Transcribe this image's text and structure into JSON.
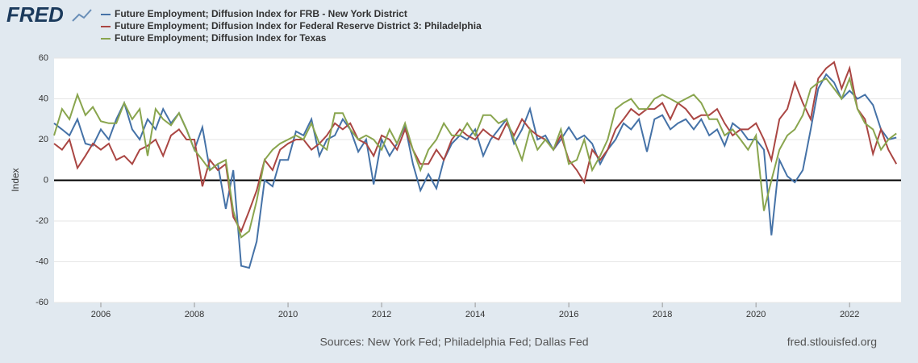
{
  "logo": "FRED",
  "chart_data": {
    "type": "line",
    "y_label": "Index",
    "source": "Sources: New York Fed; Philadelphia Fed; Dallas Fed",
    "site": "fred.stlouisfed.org",
    "xlim": [
      2005,
      2023.1
    ],
    "xticks": [
      2006,
      2008,
      2010,
      2012,
      2014,
      2016,
      2018,
      2020,
      2022
    ],
    "ylim": [
      -60,
      60
    ],
    "yticks": [
      -60,
      -40,
      -20,
      0,
      20,
      40,
      60
    ],
    "grid": true,
    "legend": "top-left",
    "x": [
      2005,
      2005.17,
      2005.33,
      2005.5,
      2005.67,
      2005.83,
      2006,
      2006.17,
      2006.33,
      2006.5,
      2006.67,
      2006.83,
      2007,
      2007.17,
      2007.33,
      2007.5,
      2007.67,
      2007.83,
      2008,
      2008.17,
      2008.33,
      2008.5,
      2008.67,
      2008.83,
      2009,
      2009.17,
      2009.33,
      2009.5,
      2009.67,
      2009.83,
      2010,
      2010.17,
      2010.33,
      2010.5,
      2010.67,
      2010.83,
      2011,
      2011.17,
      2011.33,
      2011.5,
      2011.67,
      2011.83,
      2012,
      2012.17,
      2012.33,
      2012.5,
      2012.67,
      2012.83,
      2013,
      2013.17,
      2013.33,
      2013.5,
      2013.67,
      2013.83,
      2014,
      2014.17,
      2014.33,
      2014.5,
      2014.67,
      2014.83,
      2015,
      2015.17,
      2015.33,
      2015.5,
      2015.67,
      2015.83,
      2016,
      2016.17,
      2016.33,
      2016.5,
      2016.67,
      2016.83,
      2017,
      2017.17,
      2017.33,
      2017.5,
      2017.67,
      2017.83,
      2018,
      2018.17,
      2018.33,
      2018.5,
      2018.67,
      2018.83,
      2019,
      2019.17,
      2019.33,
      2019.5,
      2019.67,
      2019.83,
      2020,
      2020.17,
      2020.33,
      2020.5,
      2020.67,
      2020.83,
      2021,
      2021.17,
      2021.33,
      2021.5,
      2021.67,
      2021.83,
      2022,
      2022.17,
      2022.33,
      2022.5,
      2022.67,
      2022.83,
      2023
    ],
    "series": [
      {
        "name": "Future Employment; Diffusion Index for FRB - New York District",
        "color": "#4572a7",
        "values": [
          28,
          25,
          22,
          30,
          18,
          17,
          25,
          20,
          30,
          38,
          25,
          20,
          30,
          25,
          35,
          28,
          33,
          25,
          15,
          26,
          5,
          8,
          -14,
          5,
          -42,
          -43,
          -30,
          0,
          -3,
          10,
          10,
          24,
          22,
          30,
          12,
          20,
          22,
          30,
          25,
          14,
          20,
          -2,
          20,
          12,
          18,
          27,
          8,
          -5,
          3,
          -4,
          10,
          18,
          22,
          20,
          25,
          12,
          20,
          25,
          30,
          18,
          25,
          35,
          20,
          22,
          15,
          20,
          26,
          20,
          22,
          18,
          8,
          15,
          20,
          28,
          25,
          30,
          14,
          30,
          32,
          25,
          28,
          30,
          25,
          30,
          22,
          25,
          17,
          28,
          25,
          20,
          20,
          15,
          -27,
          10,
          2,
          -1,
          5,
          25,
          45,
          52,
          48,
          40,
          44,
          40,
          42,
          37,
          25,
          20,
          21
        ]
      },
      {
        "name": "Future Employment; Diffusion Index for Federal Reserve District 3: Philadelphia",
        "color": "#aa4643",
        "values": [
          18,
          15,
          20,
          6,
          12,
          18,
          15,
          18,
          10,
          12,
          8,
          15,
          17,
          20,
          12,
          22,
          25,
          20,
          20,
          -3,
          10,
          5,
          8,
          -18,
          -25,
          -15,
          -5,
          10,
          5,
          15,
          18,
          20,
          20,
          15,
          18,
          22,
          28,
          25,
          28,
          20,
          18,
          12,
          22,
          20,
          15,
          25,
          15,
          8,
          8,
          15,
          10,
          20,
          25,
          22,
          20,
          25,
          22,
          20,
          28,
          22,
          30,
          25,
          22,
          20,
          15,
          22,
          10,
          5,
          -1,
          15,
          10,
          15,
          25,
          30,
          35,
          32,
          35,
          35,
          38,
          30,
          38,
          35,
          30,
          32,
          32,
          35,
          28,
          22,
          25,
          25,
          28,
          20,
          10,
          30,
          35,
          48,
          38,
          30,
          50,
          55,
          58,
          45,
          55,
          35,
          30,
          13,
          25,
          15,
          8
        ]
      },
      {
        "name": "Future Employment; Diffusion Index for Texas",
        "color": "#89a54e",
        "values": [
          22,
          35,
          30,
          42,
          32,
          36,
          29,
          28,
          28,
          38,
          30,
          35,
          12,
          35,
          30,
          27,
          33,
          25,
          15,
          10,
          5,
          8,
          10,
          -15,
          -28,
          -25,
          -10,
          10,
          15,
          18,
          20,
          22,
          20,
          28,
          18,
          15,
          33,
          33,
          25,
          20,
          22,
          20,
          15,
          25,
          18,
          28,
          15,
          5,
          15,
          20,
          28,
          22,
          22,
          28,
          22,
          32,
          32,
          28,
          30,
          20,
          10,
          25,
          15,
          20,
          15,
          25,
          8,
          10,
          20,
          5,
          12,
          20,
          35,
          38,
          40,
          35,
          35,
          40,
          42,
          40,
          38,
          40,
          42,
          38,
          30,
          30,
          22,
          25,
          20,
          15,
          22,
          -15,
          0,
          15,
          22,
          25,
          32,
          45,
          48,
          50,
          45,
          40,
          50,
          35,
          28,
          25,
          15,
          20,
          23
        ]
      }
    ]
  }
}
